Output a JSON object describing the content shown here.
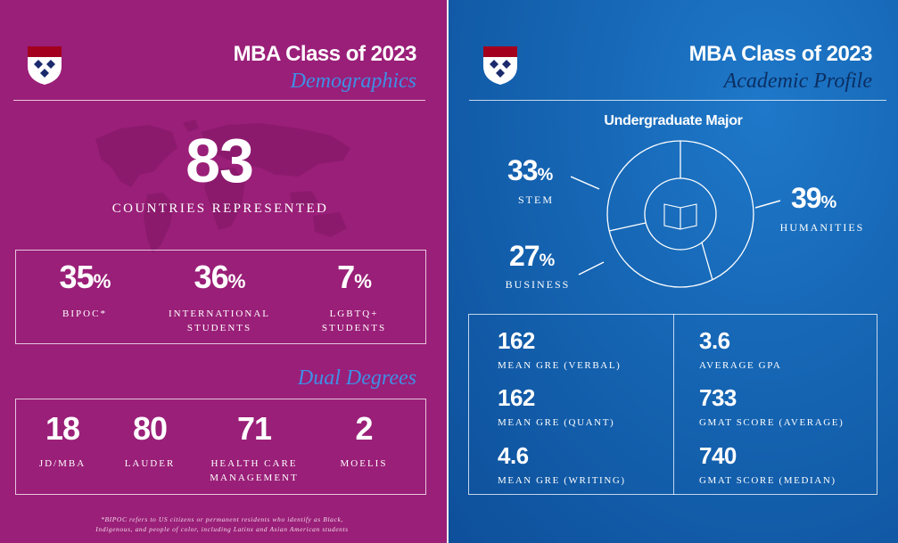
{
  "demographics": {
    "title": "MBA Class of 2023",
    "subtitle": "Demographics",
    "countries": {
      "value": "83",
      "label": "COUNTRIES REPRESENTED"
    },
    "stats": [
      {
        "value": "35",
        "unit": "%",
        "label": "BIPOC*"
      },
      {
        "value": "36",
        "unit": "%",
        "label_1": "INTERNATIONAL",
        "label_2": "STUDENTS"
      },
      {
        "value": "7",
        "unit": "%",
        "label_1": "LGBTQ+",
        "label_2": "STUDENTS"
      }
    ],
    "dual_degrees": {
      "heading": "Dual Degrees",
      "items": [
        {
          "value": "18",
          "label": "JD/MBA"
        },
        {
          "value": "80",
          "label": "LAUDER"
        },
        {
          "value": "71",
          "label_1": "HEALTH CARE",
          "label_2": "MANAGEMENT"
        },
        {
          "value": "2",
          "label": "MOELIS"
        }
      ]
    },
    "footnote_1": "*BIPOC refers to US citizens or permanent residents who identify as Black,",
    "footnote_2": "Indigenous, and people of color, including Latinx and Asian American students"
  },
  "academic": {
    "title": "MBA Class of 2023",
    "subtitle": "Academic Profile",
    "undergraduate_major": {
      "heading": "Undergraduate Major",
      "segments": [
        {
          "value": "33",
          "unit": "%",
          "label": "STEM"
        },
        {
          "value": "39",
          "unit": "%",
          "label": "HUMANITIES"
        },
        {
          "value": "27",
          "unit": "%",
          "label": "BUSINESS"
        }
      ],
      "center_icon": "open-book-icon"
    },
    "stats_left": [
      {
        "value": "162",
        "label": "MEAN GRE (VERBAL)"
      },
      {
        "value": "162",
        "label": "MEAN GRE (QUANT)"
      },
      {
        "value": "4.6",
        "label": "MEAN GRE (WRITING)"
      }
    ],
    "stats_right": [
      {
        "value": "3.6",
        "label": "AVERAGE GPA"
      },
      {
        "value": "733",
        "label": "GMAT SCORE (AVERAGE)"
      },
      {
        "value": "740",
        "label": "GMAT SCORE (MEDIAN)"
      }
    ]
  },
  "colors": {
    "left_bg": "#9a1f78",
    "right_bg": "#1565b3",
    "subtitle_left": "#3f8fe6",
    "subtitle_right": "#0b2f63",
    "shield_red": "#a3001e",
    "shield_navy": "#1a2a6c"
  }
}
